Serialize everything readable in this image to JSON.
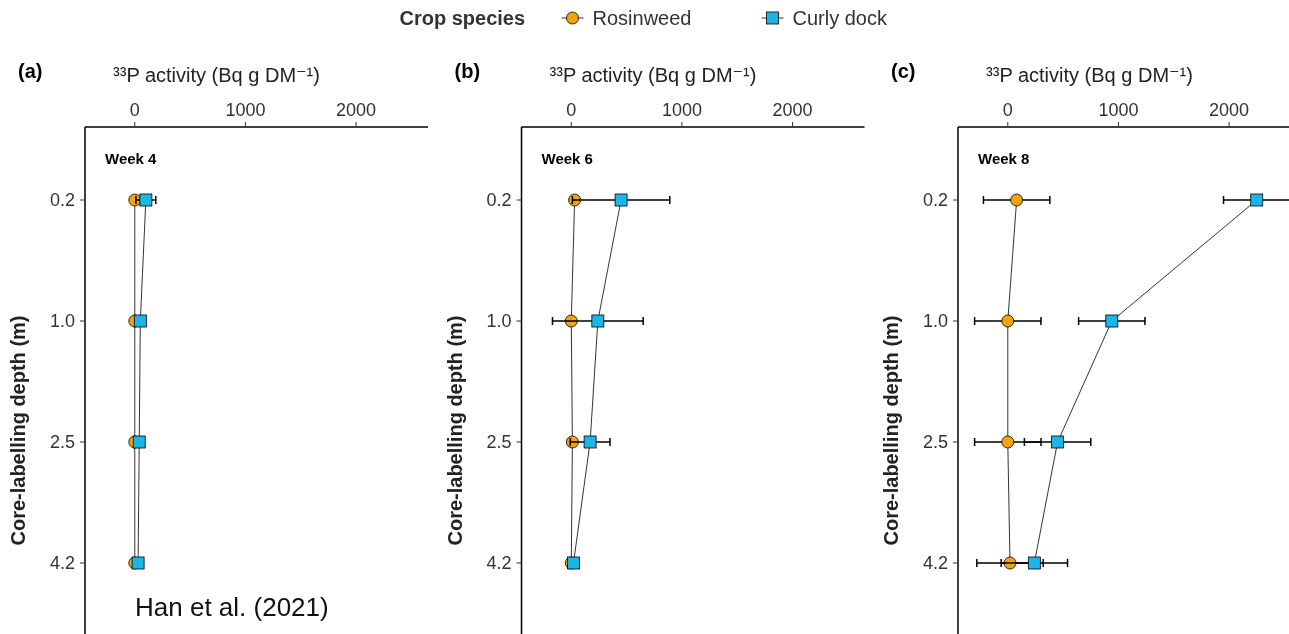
{
  "chart_data": [
    {
      "type": "line",
      "orientation": "horizontal",
      "title": "(a)",
      "xlabel": "³³P activity (Bq g DM⁻¹)",
      "ylabel": "Core-labelling depth (m)",
      "legend": "top",
      "legend_title": "Crop species",
      "line_style": "solid",
      "categories": [
        "0.2",
        "1.0",
        "2.5",
        "4.2"
      ],
      "xlim": [
        -450,
        2650
      ],
      "xticks": [
        0,
        1000,
        2000
      ],
      "annotations": [
        "Week 4",
        "Han et al. (2021)"
      ],
      "series": [
        {
          "name": "Rosinweed",
          "color": "#f5a30a",
          "marker": "circle",
          "values": [
            0,
            0,
            0,
            0
          ]
        },
        {
          "name": "Curly dock",
          "color": "#1cb5e8",
          "marker": "square",
          "values": [
            100,
            50,
            40,
            30
          ],
          "errors": [
            90,
            null,
            null,
            null
          ]
        }
      ]
    },
    {
      "type": "line",
      "orientation": "horizontal",
      "title": "(b)",
      "xlabel": "³³P activity (Bq g DM⁻¹)",
      "ylabel": "Core-labelling depth (m)",
      "line_style": "solid",
      "categories": [
        "0.2",
        "1.0",
        "2.5",
        "4.2"
      ],
      "xlim": [
        -450,
        2650
      ],
      "xticks": [
        0,
        1000,
        2000
      ],
      "annotations": [
        "Week 6"
      ],
      "series": [
        {
          "color": "#f5a30a",
          "marker": "circle",
          "values": [
            30,
            0,
            10,
            0
          ]
        },
        {
          "color": "#1cb5e8",
          "marker": "square",
          "values": [
            450,
            240,
            170,
            20
          ],
          "errors": [
            440,
            410,
            180,
            null
          ]
        }
      ]
    },
    {
      "type": "line",
      "orientation": "horizontal",
      "title": "(c)",
      "xlabel": "³³P activity (Bq g DM⁻¹)",
      "ylabel": "Core-labelling depth (m)",
      "line_style": "solid",
      "categories": [
        "0.2",
        "1.0",
        "2.5",
        "4.2"
      ],
      "xlim": [
        -450,
        2650
      ],
      "xticks": [
        0,
        1000,
        2000
      ],
      "annotations": [
        "Week 8"
      ],
      "series": [
        {
          "color": "#f5a30a",
          "marker": "circle",
          "values": [
            80,
            0,
            0,
            20
          ],
          "errors": [
            300,
            300,
            300,
            300
          ]
        },
        {
          "color": "#1cb5e8",
          "marker": "square",
          "values": [
            2250,
            940,
            450,
            240
          ],
          "errors": [
            300,
            300,
            300,
            300
          ]
        }
      ]
    }
  ]
}
